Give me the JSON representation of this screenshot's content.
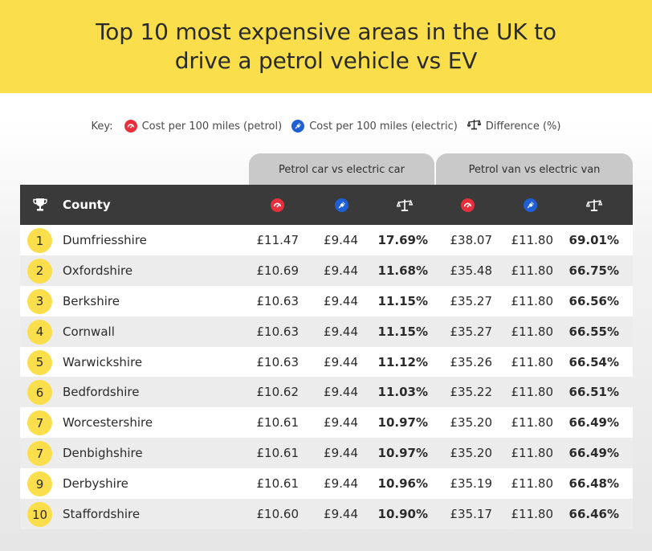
{
  "title": "Top 10 most expensive areas in the UK to drive a petrol vehicle vs EV",
  "key": {
    "label": "Key:",
    "items": [
      {
        "icon": "fuel-gauge-icon",
        "text": "Cost per 100 miles (petrol)",
        "color": "#e8303c"
      },
      {
        "icon": "electric-plug-icon",
        "text": "Cost per 100 miles (electric)",
        "color": "#1f5fd6"
      },
      {
        "icon": "scales-icon",
        "text": "Difference (%)",
        "color": "#2b2b2b"
      }
    ]
  },
  "groups": {
    "car": "Petrol car vs electric car",
    "van": "Petrol van vs electric van"
  },
  "colors": {
    "banner": "#fbde4b",
    "header": "#3a3a3a",
    "petrol": "#e8303c",
    "electric": "#1f5fd6",
    "rank_badge": "#fbde4b"
  },
  "chart_data": {
    "type": "table",
    "title": "Top 10 most expensive areas in the UK to drive a petrol vehicle vs EV",
    "columns": [
      "County",
      "Cost per 100 miles (petrol)",
      "Cost per 100 miles (electric)",
      "Difference (%)",
      "Cost per 100 miles (petrol)",
      "Cost per 100 miles (electric)",
      "Difference (%)"
    ],
    "county_header": "County",
    "rows": [
      {
        "rank": "1",
        "county": "Dumfriesshire",
        "car_petrol": "£11.47",
        "car_electric": "£9.44",
        "car_diff": "17.69%",
        "van_petrol": "£38.07",
        "van_electric": "£11.80",
        "van_diff": "69.01%"
      },
      {
        "rank": "2",
        "county": "Oxfordshire",
        "car_petrol": "£10.69",
        "car_electric": "£9.44",
        "car_diff": "11.68%",
        "van_petrol": "£35.48",
        "van_electric": "£11.80",
        "van_diff": "66.75%"
      },
      {
        "rank": "3",
        "county": "Berkshire",
        "car_petrol": "£10.63",
        "car_electric": "£9.44",
        "car_diff": "11.15%",
        "van_petrol": "£35.27",
        "van_electric": "£11.80",
        "van_diff": "66.56%"
      },
      {
        "rank": "4",
        "county": "Cornwall",
        "car_petrol": "£10.63",
        "car_electric": "£9.44",
        "car_diff": "11.15%",
        "van_petrol": "£35.27",
        "van_electric": "£11.80",
        "van_diff": "66.55%"
      },
      {
        "rank": "5",
        "county": "Warwickshire",
        "car_petrol": "£10.63",
        "car_electric": "£9.44",
        "car_diff": "11.12%",
        "van_petrol": "£35.26",
        "van_electric": "£11.80",
        "van_diff": "66.54%"
      },
      {
        "rank": "6",
        "county": "Bedfordshire",
        "car_petrol": "£10.62",
        "car_electric": "£9.44",
        "car_diff": "11.03%",
        "van_petrol": "£35.22",
        "van_electric": "£11.80",
        "van_diff": "66.51%"
      },
      {
        "rank": "7",
        "county": "Worcestershire",
        "car_petrol": "£10.61",
        "car_electric": "£9.44",
        "car_diff": "10.97%",
        "van_petrol": "£35.20",
        "van_electric": "£11.80",
        "van_diff": "66.49%"
      },
      {
        "rank": "7",
        "county": "Denbighshire",
        "car_petrol": "£10.61",
        "car_electric": "£9.44",
        "car_diff": "10.97%",
        "van_petrol": "£35.20",
        "van_electric": "£11.80",
        "van_diff": "66.49%"
      },
      {
        "rank": "9",
        "county": "Derbyshire",
        "car_petrol": "£10.61",
        "car_electric": "£9.44",
        "car_diff": "10.96%",
        "van_petrol": "£35.19",
        "van_electric": "£11.80",
        "van_diff": "66.48%"
      },
      {
        "rank": "10",
        "county": "Staffordshire",
        "car_petrol": "£10.60",
        "car_electric": "£9.44",
        "car_diff": "10.90%",
        "van_petrol": "£35.17",
        "van_electric": "£11.80",
        "van_diff": "66.46%"
      }
    ]
  }
}
